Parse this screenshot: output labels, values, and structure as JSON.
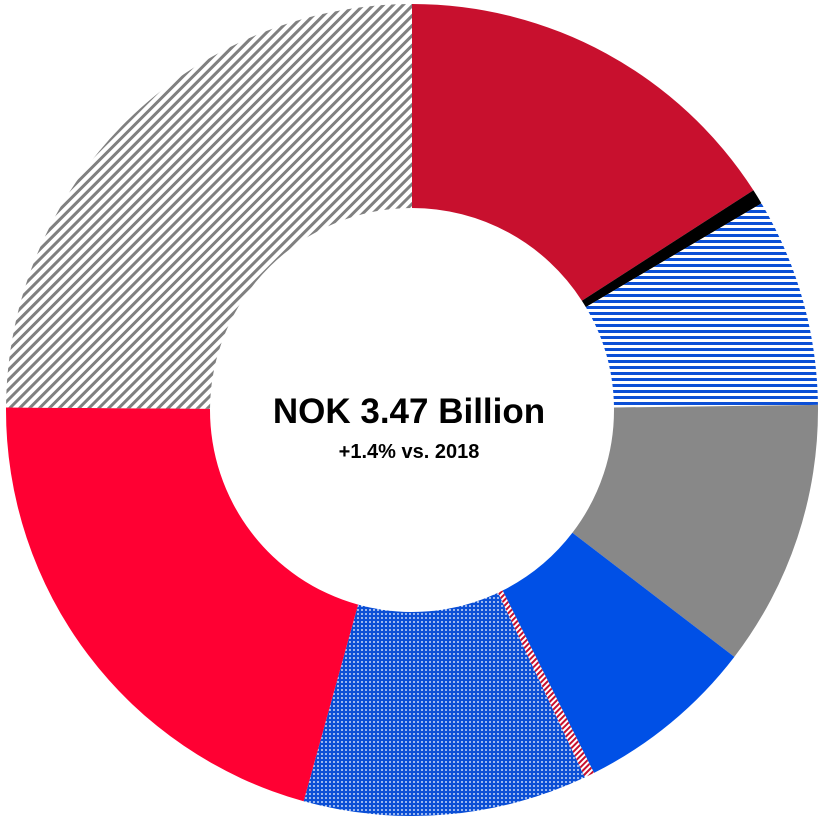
{
  "chart_data": {
    "type": "pie",
    "variant": "donut",
    "center_title": "NOK 3.47 Billion",
    "center_subtitle": "+1.4% vs. 2018",
    "slices": [
      {
        "value": 15.9,
        "fill": "solid",
        "color": "#C8102E"
      },
      {
        "value": 0.6,
        "fill": "solid",
        "color": "#000000"
      },
      {
        "value": 8.3,
        "fill": "horizontal-stripes",
        "color": "#0B4FD6"
      },
      {
        "value": 10.6,
        "fill": "solid",
        "color": "#888888"
      },
      {
        "value": 7.2,
        "fill": "solid",
        "color": "#0050E6"
      },
      {
        "value": 0.4,
        "fill": "diagonal-stripes",
        "color": "#C8102E"
      },
      {
        "value": 11.3,
        "fill": "dots",
        "color": "#0B4FD6"
      },
      {
        "value": 20.8,
        "fill": "solid",
        "color": "#FF0033"
      },
      {
        "value": 24.9,
        "fill": "diagonal-stripes",
        "color": "#808080"
      }
    ]
  }
}
